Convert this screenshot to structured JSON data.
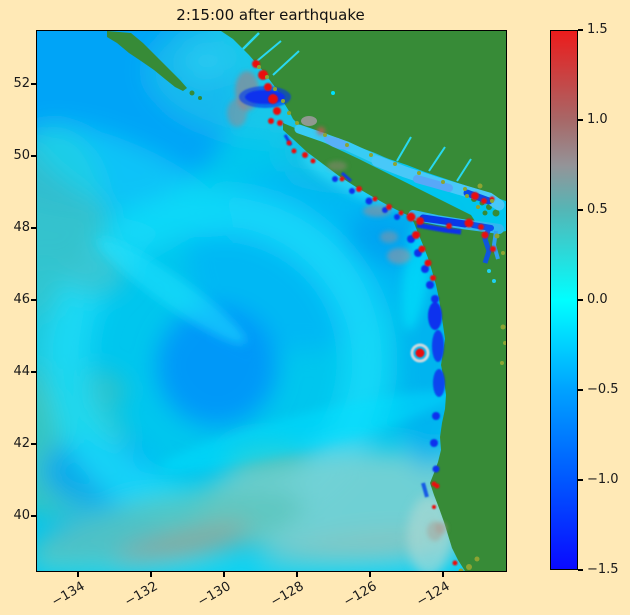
{
  "colors": {
    "background": "#ffe9b6",
    "text": "#1a1a1a",
    "axes_border": "#000000",
    "land_green": "#378b37",
    "lowland_olive": "#8da432",
    "ocean_cyan": "#00c6ee",
    "wave_crest_red": "#ea1010",
    "wave_trough_blue": "#0833ee"
  },
  "chart_data": {
    "type": "heatmap",
    "title": "2:15:00 after earthquake",
    "description": "Tsunami sea-surface elevation (meters) over the Cascadia / Pacific-Northwest coast 2h15m after the earthquake. Cyan-blue ocean field with concentric outgoing wave fronts; bright red wave crests and dark blue troughs hug the coastline of British Columbia, Vancouver Island, Washington and Oregon; land is green with olive lowlands.",
    "grid": false,
    "legend_position": "colorbar-right",
    "x_axis": {
      "label": "",
      "ticks": [
        -134,
        -132,
        -130,
        -128,
        -126,
        -124
      ],
      "tick_labels": [
        "−134",
        "−132",
        "−130",
        "−128",
        "−126",
        "−124"
      ],
      "range": [
        -135.15,
        -122.3
      ],
      "tick_rotation_deg": 30
    },
    "y_axis": {
      "label": "",
      "ticks": [
        52,
        50,
        48,
        46,
        44,
        42,
        40
      ],
      "tick_labels": [
        "52",
        "50",
        "48",
        "46",
        "44",
        "42",
        "40"
      ],
      "range": [
        38.5,
        53.5
      ]
    },
    "colorbar": {
      "range": [
        -1.5,
        1.5
      ],
      "ticks": [
        1.5,
        1.0,
        0.5,
        0.0,
        -0.5,
        -1.0,
        -1.5
      ],
      "tick_labels": [
        "1.5",
        "1.0",
        "0.5",
        "0.0",
        "−0.5",
        "−1.0",
        "−1.5"
      ],
      "stops": [
        {
          "v": 1.5,
          "c": "#ec1c1c"
        },
        {
          "v": 1.0,
          "c": "#a76868"
        },
        {
          "v": 0.75,
          "c": "#949498"
        },
        {
          "v": 0.5,
          "c": "#54b6b6"
        },
        {
          "v": 0.0,
          "c": "#00ffff"
        },
        {
          "v": -0.5,
          "c": "#00a2ff"
        },
        {
          "v": -1.0,
          "c": "#0058ff"
        },
        {
          "v": -1.5,
          "c": "#0a0aff"
        }
      ]
    }
  }
}
